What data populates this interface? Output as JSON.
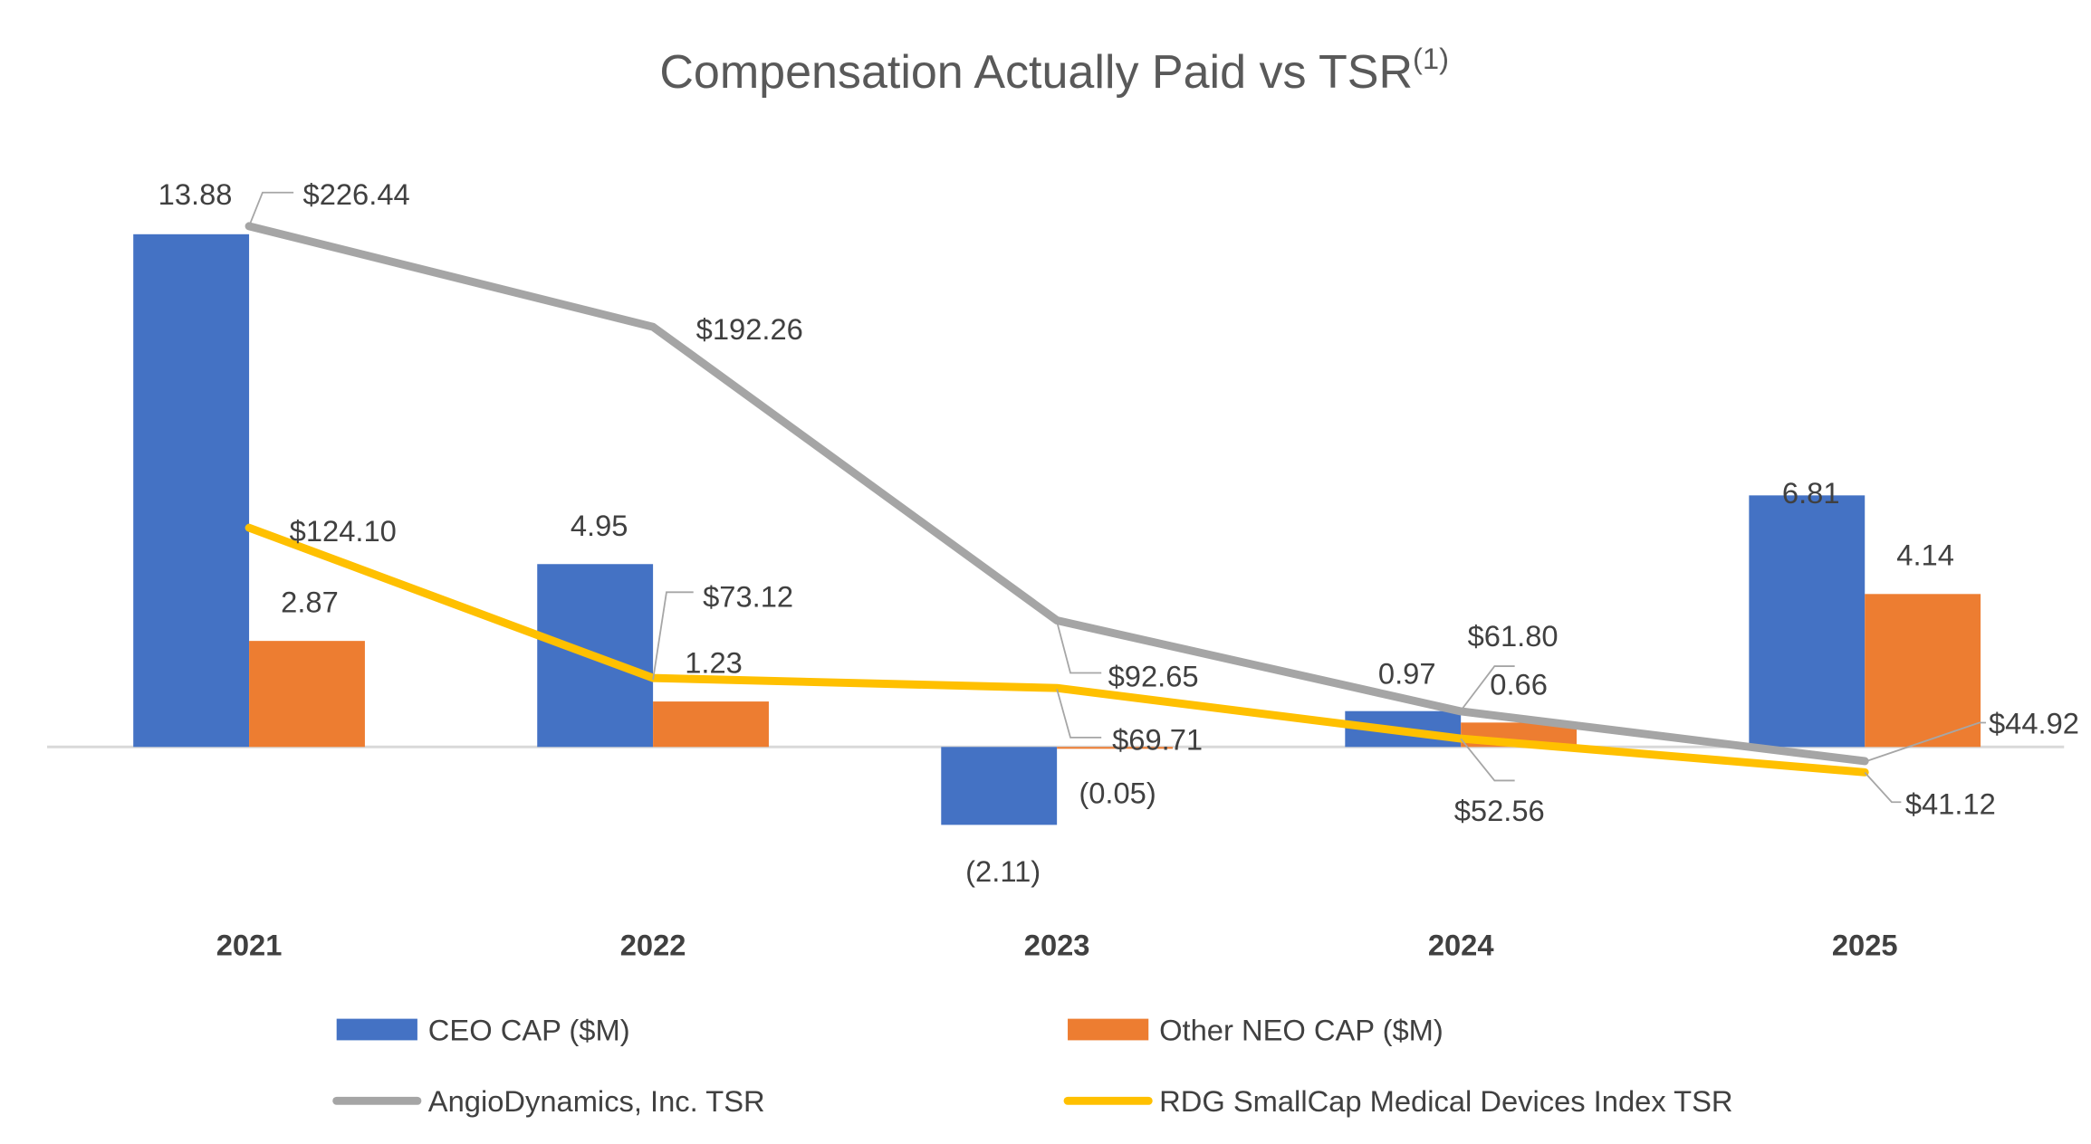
{
  "chart_data": {
    "type": "bar",
    "title": "Compensation Actually Paid vs TSR",
    "title_superscript": "(1)",
    "categories": [
      "2021",
      "2022",
      "2023",
      "2024",
      "2025"
    ],
    "series": [
      {
        "name": "CEO CAP ($M)",
        "kind": "bar",
        "axis": "primary",
        "color": "#4472C4",
        "values": [
          13.88,
          4.95,
          -2.11,
          0.97,
          6.81
        ],
        "labels": [
          "13.88",
          "4.95",
          "(2.11)",
          "0.97",
          "6.81"
        ]
      },
      {
        "name": "Other NEO CAP ($M)",
        "kind": "bar",
        "axis": "primary",
        "color": "#ED7D31",
        "values": [
          2.87,
          1.23,
          -0.05,
          0.66,
          4.14
        ],
        "labels": [
          "2.87",
          "1.23",
          "(0.05)",
          "0.66",
          "4.14"
        ]
      },
      {
        "name": "AngioDynamics, Inc. TSR",
        "kind": "line",
        "axis": "secondary",
        "color": "#A5A5A5",
        "values": [
          226.44,
          192.26,
          92.65,
          61.8,
          44.92
        ],
        "labels": [
          "$226.44",
          "$192.26",
          "$92.65",
          "$61.80",
          "$44.92"
        ]
      },
      {
        "name": "RDG SmallCap Medical Devices Index TSR",
        "kind": "line",
        "axis": "secondary",
        "color": "#FFC000",
        "values": [
          124.1,
          73.12,
          69.71,
          52.56,
          41.12
        ],
        "labels": [
          "$124.10",
          "$73.12",
          "$69.71",
          "$52.56",
          "$41.12"
        ]
      }
    ],
    "legend_position": "bottom",
    "grid": false
  }
}
